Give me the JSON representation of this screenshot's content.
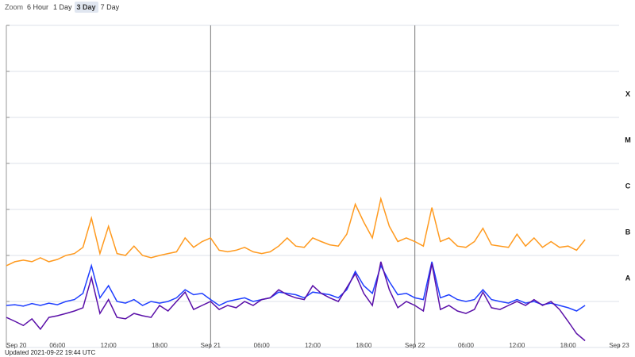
{
  "zoom": {
    "label": "Zoom",
    "buttons": [
      "6 Hour",
      "1 Day",
      "3 Day",
      "7 Day"
    ],
    "selected": 2
  },
  "footer": "Updated 2021-09-22 19:44 UTC",
  "chart_data": {
    "type": "line",
    "log": true,
    "x": [
      0,
      1,
      2,
      3,
      4,
      5,
      6,
      7,
      8,
      9,
      10,
      11,
      12,
      13,
      14,
      15,
      16,
      17,
      18,
      19,
      20,
      21,
      22,
      23,
      24,
      25,
      26,
      27,
      28,
      29,
      30,
      31,
      32,
      33,
      34,
      35,
      36,
      37,
      38,
      39,
      40,
      41,
      42,
      43,
      44,
      45,
      46,
      47,
      48,
      49,
      50,
      51,
      52,
      53,
      54,
      55,
      56,
      57,
      58,
      59,
      60,
      61,
      62,
      63,
      64,
      65,
      66,
      67,
      68
    ],
    "xlim": [
      0,
      72
    ],
    "xticks": [
      {
        "value": 0,
        "label": "Sep 20"
      },
      {
        "value": 6,
        "label": "06:00"
      },
      {
        "value": 12,
        "label": "12:00"
      },
      {
        "value": 18,
        "label": "18:00"
      },
      {
        "value": 24,
        "label": "Sep 21"
      },
      {
        "value": 30,
        "label": "06:00"
      },
      {
        "value": 36,
        "label": "12:00"
      },
      {
        "value": 42,
        "label": "18:00"
      },
      {
        "value": 48,
        "label": "Sep 22"
      },
      {
        "value": 54,
        "label": "06:00"
      },
      {
        "value": 60,
        "label": "12:00"
      },
      {
        "value": 66,
        "label": "18:00"
      },
      {
        "value": 72,
        "label": "Sep 23"
      }
    ],
    "ylim": [
      1e-09,
      0.01
    ],
    "yticks": [
      1e-09,
      1e-08,
      1e-07,
      1e-06,
      1e-05,
      0.0001,
      0.001,
      0.01
    ],
    "class_labels": [
      "A",
      "B",
      "C",
      "M",
      "X"
    ],
    "series": [
      {
        "color": "#ff9a1f",
        "values": [
          6e-08,
          7.3e-08,
          7.9e-08,
          7.3e-08,
          8.9e-08,
          7.3e-08,
          8.2e-08,
          1e-07,
          1.1e-07,
          1.5e-07,
          6.5e-07,
          1.1e-07,
          4.3e-07,
          1.1e-07,
          1e-07,
          1.6e-07,
          1e-07,
          8.9e-08,
          1e-07,
          1.1e-07,
          1.2e-07,
          2.4e-07,
          1.5e-07,
          2e-07,
          2.4e-07,
          1.3e-07,
          1.2e-07,
          1.3e-07,
          1.5e-07,
          1.2e-07,
          1.1e-07,
          1.2e-07,
          1.6e-07,
          2.4e-07,
          1.6e-07,
          1.5e-07,
          2.4e-07,
          2e-07,
          1.7e-07,
          1.6e-07,
          2.9e-07,
          1.3e-06,
          5.3e-07,
          2.4e-07,
          1.7e-06,
          4.3e-07,
          2e-07,
          2.4e-07,
          2e-07,
          1.6e-07,
          1.1e-06,
          2e-07,
          2.4e-07,
          1.6e-07,
          1.5e-07,
          2e-07,
          3.9e-07,
          1.7e-07,
          1.6e-07,
          1.5e-07,
          2.9e-07,
          1.6e-07,
          2.4e-07,
          1.5e-07,
          2e-07,
          1.5e-07,
          1.6e-07,
          1.3e-07,
          2.2e-07
        ]
      },
      {
        "color": "#1f3fff",
        "values": [
          8.2e-09,
          8.5e-09,
          7.9e-09,
          9e-09,
          8.2e-09,
          9.2e-09,
          8.5e-09,
          1e-08,
          1.1e-08,
          1.5e-08,
          6e-08,
          1.2e-08,
          2.2e-08,
          1e-08,
          9.2e-09,
          1.1e-08,
          8.2e-09,
          1e-08,
          9.2e-09,
          1e-08,
          1.2e-08,
          1.8e-08,
          1.4e-08,
          1.5e-08,
          1.1e-08,
          8.2e-09,
          1e-08,
          1.1e-08,
          1.2e-08,
          1e-08,
          1.1e-08,
          1.2e-08,
          1.6e-08,
          1.5e-08,
          1.4e-08,
          1.2e-08,
          1.6e-08,
          1.5e-08,
          1.4e-08,
          1.2e-08,
          1.8e-08,
          4.5e-08,
          2.2e-08,
          1.5e-08,
          6e-08,
          2.7e-08,
          1.4e-08,
          1.5e-08,
          1.2e-08,
          1.1e-08,
          7.3e-08,
          1.2e-08,
          1.4e-08,
          1.1e-08,
          1e-08,
          1.1e-08,
          1.8e-08,
          1.1e-08,
          1e-08,
          9.2e-09,
          1.1e-08,
          9.2e-09,
          1e-08,
          8.5e-09,
          9.2e-09,
          8.2e-09,
          7.3e-09,
          6.2e-09,
          8.2e-09
        ]
      },
      {
        "color": "#5a0fa8",
        "values": [
          4.5e-09,
          3.7e-09,
          3e-09,
          4.2e-09,
          2.5e-09,
          4.5e-09,
          4.9e-09,
          5.5e-09,
          6.2e-09,
          7.3e-09,
          3.3e-08,
          5.5e-09,
          1.1e-08,
          4.5e-09,
          4.2e-09,
          5.5e-09,
          4.9e-09,
          4.5e-09,
          8.2e-09,
          6.2e-09,
          1e-08,
          1.6e-08,
          6.7e-09,
          8.2e-09,
          1e-08,
          6.7e-09,
          8.2e-09,
          7.3e-09,
          1e-08,
          8.2e-09,
          1.1e-08,
          1.2e-08,
          1.8e-08,
          1.4e-08,
          1.2e-08,
          1.1e-08,
          2.2e-08,
          1.5e-08,
          1.2e-08,
          1e-08,
          2e-08,
          4e-08,
          1.5e-08,
          8.2e-09,
          7.3e-08,
          1.8e-08,
          7.3e-09,
          1e-08,
          8.2e-09,
          6.2e-09,
          6.7e-08,
          6.7e-09,
          8.2e-09,
          6.2e-09,
          5.5e-09,
          6.7e-09,
          1.6e-08,
          7.3e-09,
          6.7e-09,
          8.2e-09,
          1e-08,
          8.2e-09,
          1.1e-08,
          8.2e-09,
          1e-08,
          6.7e-09,
          3.7e-09,
          2e-09,
          1.4e-09
        ]
      }
    ]
  }
}
